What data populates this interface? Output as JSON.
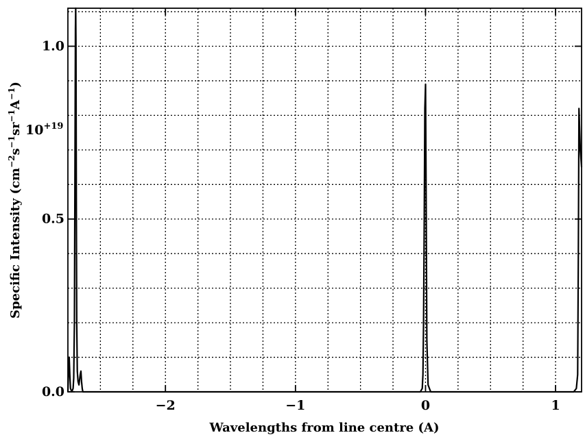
{
  "chart_data": {
    "type": "line",
    "xlabel": "Wavelengths from line centre (A)",
    "ylabel_parts": [
      "Specific Intensity (cm",
      "−2",
      "s",
      "−1",
      "sr",
      "−1",
      "A",
      "−1",
      ")"
    ],
    "y_multiplier": "10",
    "y_multiplier_exp": "+19",
    "xlim": [
      -2.75,
      1.2
    ],
    "ylim": [
      0.0,
      1.11
    ],
    "x_ticks": [
      -2,
      -1,
      0,
      1
    ],
    "x_tick_labels": [
      "−2",
      "−1",
      "0",
      "1"
    ],
    "y_ticks": [
      0.0,
      0.5,
      1.0
    ],
    "y_tick_labels": [
      "0.0",
      "0.5",
      "1.0"
    ],
    "grid": true,
    "series": [
      {
        "x": [
          -2.75,
          -2.745,
          -2.74,
          -2.735,
          -2.73,
          -2.72,
          -2.71,
          -2.705,
          -2.7,
          -2.695,
          -2.692,
          -2.69,
          -2.688,
          -2.685,
          -2.682,
          -2.678,
          -2.672,
          -2.665,
          -2.655,
          -2.65,
          -2.645,
          -2.64,
          -2.635,
          -2.6,
          -0.04,
          -0.025,
          -0.02,
          -0.015,
          -0.01,
          -0.005,
          0.0,
          0.005,
          0.01,
          0.02,
          0.04,
          1.14,
          1.16,
          1.17,
          1.175,
          1.18,
          1.19,
          1.2
        ],
        "y": [
          0.0,
          0.06,
          0.1,
          0.05,
          0.01,
          0.0,
          0.01,
          0.04,
          0.2,
          0.7,
          1.05,
          1.11,
          1.0,
          0.55,
          0.2,
          0.06,
          0.03,
          0.02,
          0.05,
          0.06,
          0.03,
          0.01,
          0.0,
          0.0,
          0.0,
          0.01,
          0.05,
          0.2,
          0.5,
          0.82,
          0.89,
          0.55,
          0.15,
          0.02,
          0.0,
          0.0,
          0.01,
          0.05,
          0.4,
          0.82,
          0.7,
          0.65
        ]
      }
    ]
  }
}
